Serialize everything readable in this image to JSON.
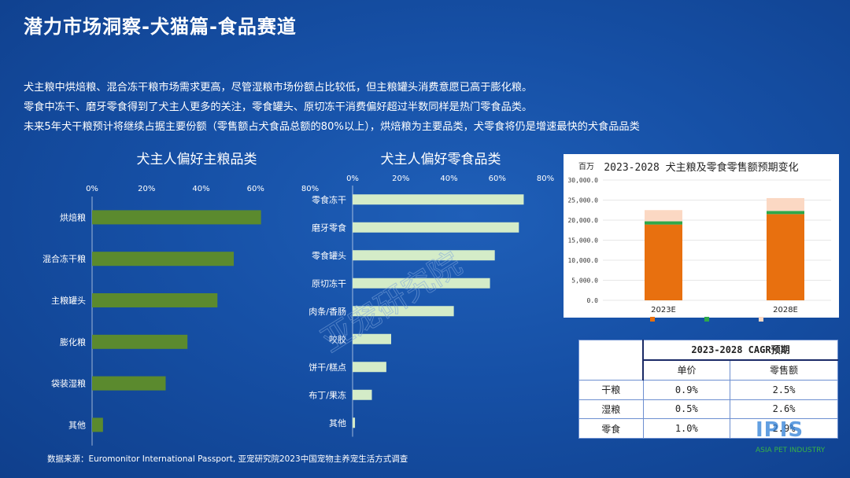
{
  "page": {
    "title": "潜力市场洞察-犬猫篇-食品赛道",
    "intro_lines": [
      "犬主粮中烘焙粮、混合冻干粮市场需求更高，尽管湿粮市场份额占比较低，但主粮罐头消费意愿已高于膨化粮。",
      "零食中冻干、磨牙零食得到了犬主人更多的关注，零食罐头、原切冻干消费偏好超过半数同样是热门零食品类。",
      "未来5年犬干粮预计将继续占据主要份额（零售额占犬食品总额的80%以上），烘焙粮为主要品类，犬零食将仍是增速最快的犬食品品类"
    ],
    "source": "数据来源：Euromonitor International Passport, 亚宠研究院2023中国宠物主养宠生活方式调查",
    "watermark": "亚宠研究院",
    "logo_text": "IPIS",
    "logo_sub": "ASIA PET INDUSTRY"
  },
  "colors": {
    "bg": "#1650a6",
    "staple_bar": "#5b8a2e",
    "snack_bar": "#d4ecc8",
    "dry_food": "#e8700f",
    "wet_food": "#2ea84a",
    "snacks": "#fbd8c3"
  },
  "chart_data": [
    {
      "type": "bar",
      "orientation": "horizontal",
      "title": "犬主人偏好主粮品类",
      "categories": [
        "烘焙粮",
        "混合冻干粮",
        "主粮罐头",
        "膨化粮",
        "袋装湿粮",
        "其他"
      ],
      "values": [
        62,
        52,
        46,
        35,
        27,
        4
      ],
      "unit": "%",
      "xlim": [
        0,
        80
      ],
      "ticks": [
        "0%",
        "20%",
        "40%",
        "60%",
        "80%"
      ]
    },
    {
      "type": "bar",
      "orientation": "horizontal",
      "title": "犬主人偏好零食品类",
      "categories": [
        "零食冻干",
        "磨牙零食",
        "零食罐头",
        "原切冻干",
        "肉条/香肠",
        "咬胶",
        "饼干/糕点",
        "布丁/果冻",
        "其他"
      ],
      "values": [
        71,
        69,
        59,
        57,
        42,
        16,
        14,
        8,
        1
      ],
      "unit": "%",
      "xlim": [
        0,
        80
      ],
      "ticks": [
        "0%",
        "20%",
        "40%",
        "60%",
        "80%"
      ]
    },
    {
      "type": "bar",
      "stacked": true,
      "title": "2023-2028 犬主粮及零食零售额预期变化",
      "ylabel": "百万",
      "categories": [
        "2023E",
        "2028E"
      ],
      "series": [
        {
          "color_key": "dry_food",
          "values": [
            18900,
            21500
          ]
        },
        {
          "color_key": "wet_food",
          "values": [
            800,
            800
          ]
        },
        {
          "color_key": "snacks",
          "values": [
            2800,
            3200
          ]
        }
      ],
      "ylim": [
        0,
        30000
      ],
      "yticks": [
        "0.0",
        "5,000.0",
        "10,000.0",
        "15,000.0",
        "20,000.0",
        "25,000.0",
        "30,000.0"
      ]
    }
  ],
  "cagr_table": {
    "title": "2023-2028 CAGR预期",
    "col_headers": [
      "单价",
      "零售额"
    ],
    "rows": [
      {
        "label": "干粮",
        "price": "0.9%",
        "sales": "2.5%"
      },
      {
        "label": "湿粮",
        "price": "0.5%",
        "sales": "2.6%"
      },
      {
        "label": "零食",
        "price": "1.0%",
        "sales": "2.9%"
      }
    ]
  }
}
